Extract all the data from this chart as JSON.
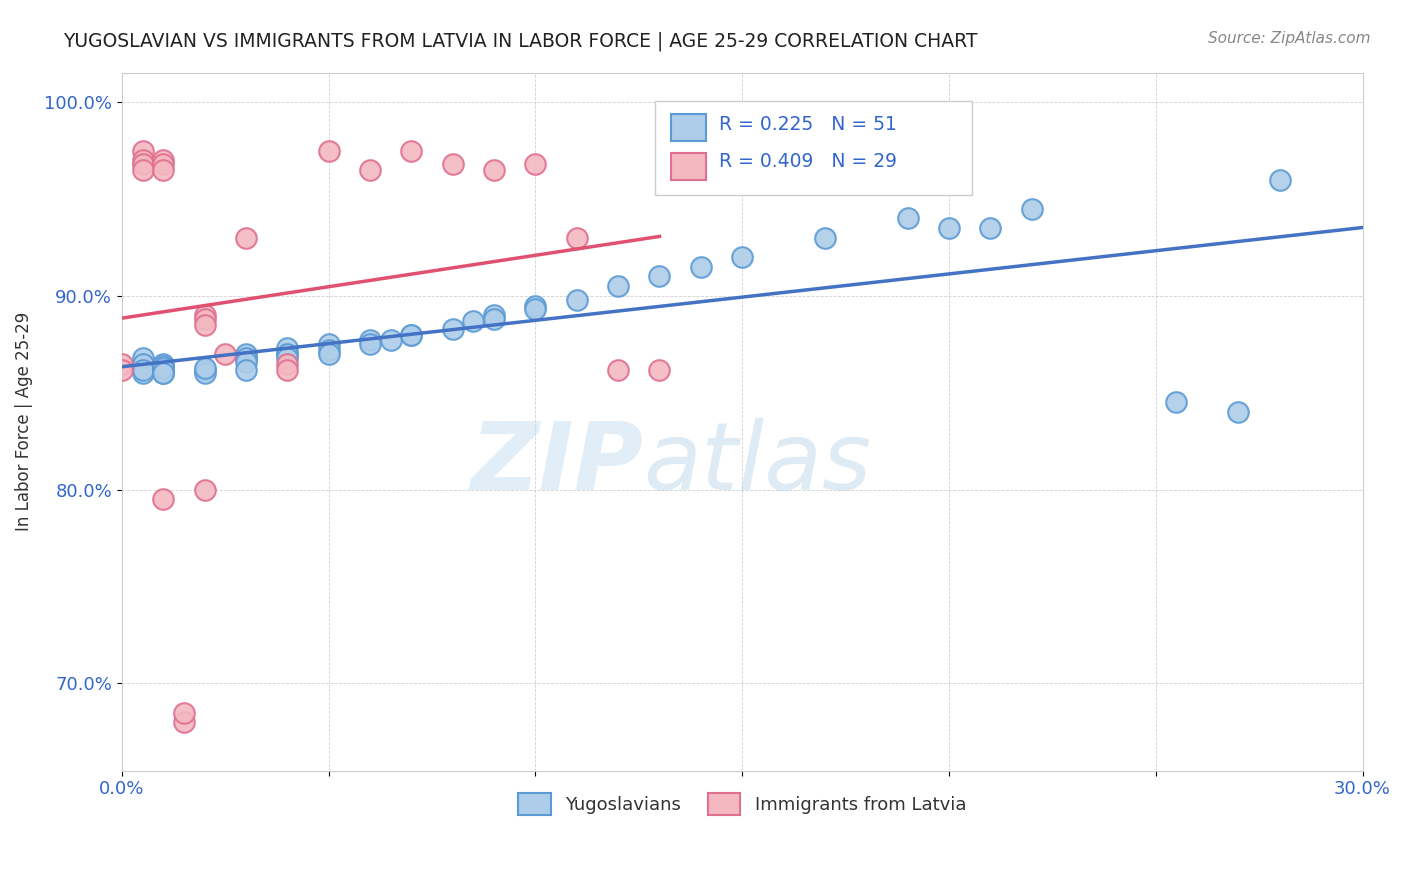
{
  "title": "YUGOSLAVIAN VS IMMIGRANTS FROM LATVIA IN LABOR FORCE | AGE 25-29 CORRELATION CHART",
  "source": "Source: ZipAtlas.com",
  "ylabel": "In Labor Force | Age 25-29",
  "xlim": [
    0.0,
    0.3
  ],
  "ylim": [
    0.655,
    1.015
  ],
  "xticks": [
    0.0,
    0.05,
    0.1,
    0.15,
    0.2,
    0.25,
    0.3
  ],
  "xticklabels": [
    "0.0%",
    "",
    "",
    "",
    "",
    "",
    "30.0%"
  ],
  "yticks": [
    0.7,
    0.8,
    0.9,
    1.0
  ],
  "yticklabels": [
    "70.0%",
    "80.0%",
    "90.0%",
    "100.0%"
  ],
  "legend_r1": "0.225",
  "legend_n1": "51",
  "legend_r2": "0.409",
  "legend_n2": "29",
  "blue_scatter_face": "#aecde8",
  "blue_scatter_edge": "#5b9bd5",
  "pink_scatter_face": "#f4b8c1",
  "pink_scatter_edge": "#e07090",
  "blue_line_color": "#4472c4",
  "pink_line_color": "#e05070",
  "watermark_zip": "ZIP",
  "watermark_atlas": "atlas",
  "yug_x": [
    0.005,
    0.005,
    0.005,
    0.005,
    0.005,
    0.01,
    0.01,
    0.01,
    0.01,
    0.01,
    0.01,
    0.01,
    0.02,
    0.02,
    0.02,
    0.03,
    0.03,
    0.03,
    0.03,
    0.03,
    0.04,
    0.04,
    0.04,
    0.04,
    0.05,
    0.05,
    0.05,
    0.06,
    0.06,
    0.065,
    0.07,
    0.07,
    0.08,
    0.085,
    0.09,
    0.09,
    0.1,
    0.1,
    0.11,
    0.12,
    0.13,
    0.14,
    0.15,
    0.17,
    0.19,
    0.2,
    0.21,
    0.22,
    0.255,
    0.27,
    0.28
  ],
  "yug_y": [
    0.865,
    0.868,
    0.865,
    0.86,
    0.862,
    0.865,
    0.862,
    0.864,
    0.862,
    0.86,
    0.863,
    0.86,
    0.862,
    0.86,
    0.863,
    0.868,
    0.87,
    0.868,
    0.866,
    0.862,
    0.87,
    0.873,
    0.87,
    0.868,
    0.875,
    0.872,
    0.87,
    0.877,
    0.875,
    0.877,
    0.88,
    0.88,
    0.883,
    0.887,
    0.89,
    0.888,
    0.895,
    0.893,
    0.898,
    0.905,
    0.91,
    0.915,
    0.92,
    0.93,
    0.94,
    0.935,
    0.935,
    0.945,
    0.845,
    0.84,
    0.96
  ],
  "lat_x": [
    0.0,
    0.0,
    0.005,
    0.005,
    0.005,
    0.005,
    0.01,
    0.01,
    0.01,
    0.015,
    0.015,
    0.02,
    0.02,
    0.02,
    0.025,
    0.03,
    0.04,
    0.04,
    0.05,
    0.06,
    0.07,
    0.08,
    0.09,
    0.1,
    0.11,
    0.12,
    0.13,
    0.01,
    0.02
  ],
  "lat_y": [
    0.865,
    0.862,
    0.975,
    0.97,
    0.968,
    0.965,
    0.97,
    0.968,
    0.965,
    0.68,
    0.685,
    0.89,
    0.888,
    0.885,
    0.87,
    0.93,
    0.865,
    0.862,
    0.975,
    0.965,
    0.975,
    0.968,
    0.965,
    0.968,
    0.93,
    0.862,
    0.862,
    0.795,
    0.8
  ]
}
